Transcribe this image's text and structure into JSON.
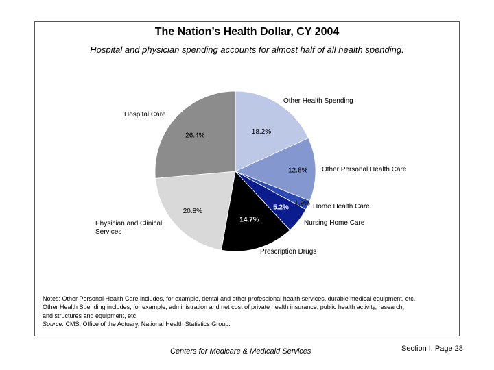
{
  "chart_data": {
    "type": "pie",
    "title": "The Nation’s Health Dollar, CY 2004",
    "subtitle": "Hospital and physician spending accounts for almost half of all health spending.",
    "slices": [
      {
        "name": "Other Health Spending",
        "value": 18.2,
        "label": "18.2%",
        "color": "#bcc8e6"
      },
      {
        "name": "Other Personal Health Care",
        "value": 12.8,
        "label": "12.8%",
        "color": "#8597cf"
      },
      {
        "name": "Home Health Care",
        "value": 1.9,
        "label": "1.9%",
        "color": "#2d49b4"
      },
      {
        "name": "Nursing Home Care",
        "value": 5.2,
        "label": "5.2%",
        "color": "#0a1c8e"
      },
      {
        "name": "Prescription Drugs",
        "value": 14.7,
        "label": "14.7%",
        "color": "#000000"
      },
      {
        "name": "Physician and Clinical Services",
        "value": 20.8,
        "label": "20.8%",
        "color": "#d9d9d9"
      },
      {
        "name": "Hospital Care",
        "value": 26.4,
        "label": "26.4%",
        "color": "#8c8c8c"
      }
    ]
  },
  "category_labels": {
    "other_health_spending": "Other Health Spending",
    "other_personal_health_care": "Other Personal Health Care",
    "home_health_care": "Home Health Care",
    "nursing_home_care": "Nursing Home Care",
    "prescription_drugs": "Prescription Drugs",
    "physician_line1": "Physician and Clinical",
    "physician_line2": "Services",
    "hospital_care": "Hospital Care"
  },
  "notes": {
    "line1": "Notes: Other Personal Health Care includes, for example, dental and other professional health services, durable medical equipment, etc.",
    "line2": "Other Health Spending includes, for example, administration and net cost of private health insurance, public health activity, research,",
    "line3": "and structures and equipment, etc.",
    "source_label": "Source:",
    "source_text": " CMS, Office of the Actuary, National Health Statistics Group."
  },
  "footer": {
    "organization": "Centers for Medicare & Medicaid Services",
    "page": "Section I. Page 28"
  }
}
